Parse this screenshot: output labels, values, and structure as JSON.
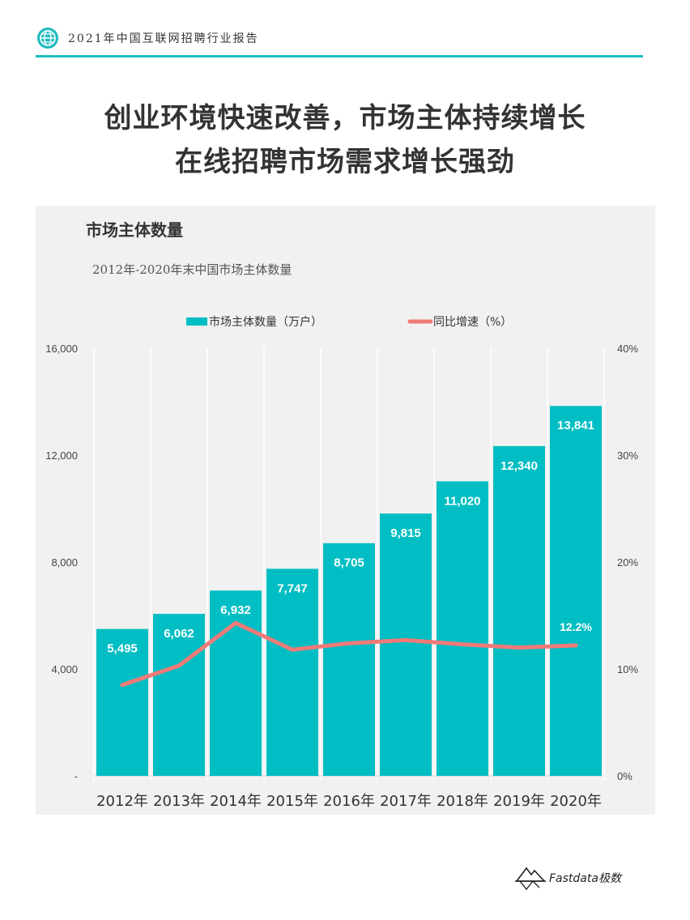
{
  "header": {
    "icon": "globe-icon",
    "text": "2021年中国互联网招聘行业报告",
    "accent_color": "#1fbcbd"
  },
  "title": {
    "line1": "创业环境快速改善，市场主体持续增长",
    "line2": "在线招聘市场需求增长强劲"
  },
  "chart_data": {
    "type": "bar",
    "title": "市场主体数量",
    "subtitle": "2012年-2020年末中国市场主体数量",
    "categories": [
      "2012年",
      "2013年",
      "2014年",
      "2015年",
      "2016年",
      "2017年",
      "2018年",
      "2019年",
      "2020年"
    ],
    "series": [
      {
        "name": "市场主体数量（万户）",
        "type": "bar",
        "axis": "left",
        "color": "#00bec3",
        "values": [
          5495,
          6062,
          6932,
          7747,
          8705,
          9815,
          11020,
          12340,
          13841
        ],
        "labels": [
          "5,495",
          "6,062",
          "6,932",
          "7,747",
          "8,705",
          "9,815",
          "11,020",
          "12,340",
          "13,841"
        ]
      },
      {
        "name": "同比增速（%）",
        "type": "line",
        "axis": "right",
        "color": "#f07a78",
        "values": [
          8.5,
          10.3,
          14.3,
          11.8,
          12.4,
          12.7,
          12.3,
          12.0,
          12.2
        ],
        "labels": [
          "",
          "",
          "",
          "",
          "",
          "",
          "",
          "",
          "12.2%"
        ]
      }
    ],
    "y_left": {
      "ylim": [
        0,
        16000
      ],
      "ticks": [
        0,
        4000,
        8000,
        12000,
        16000
      ],
      "tick_labels": [
        "-",
        "4,000",
        "8,000",
        "12,000",
        "16,000"
      ]
    },
    "y_right": {
      "ylim": [
        0,
        40
      ],
      "ticks": [
        0,
        10,
        20,
        30,
        40
      ],
      "tick_labels": [
        "0%",
        "10%",
        "20%",
        "30%",
        "40%"
      ]
    },
    "legend_position": "top-center",
    "grid": true
  },
  "footer": {
    "logo_text": "Fastdata极数",
    "logo_icon": "mountain-logo-icon"
  }
}
